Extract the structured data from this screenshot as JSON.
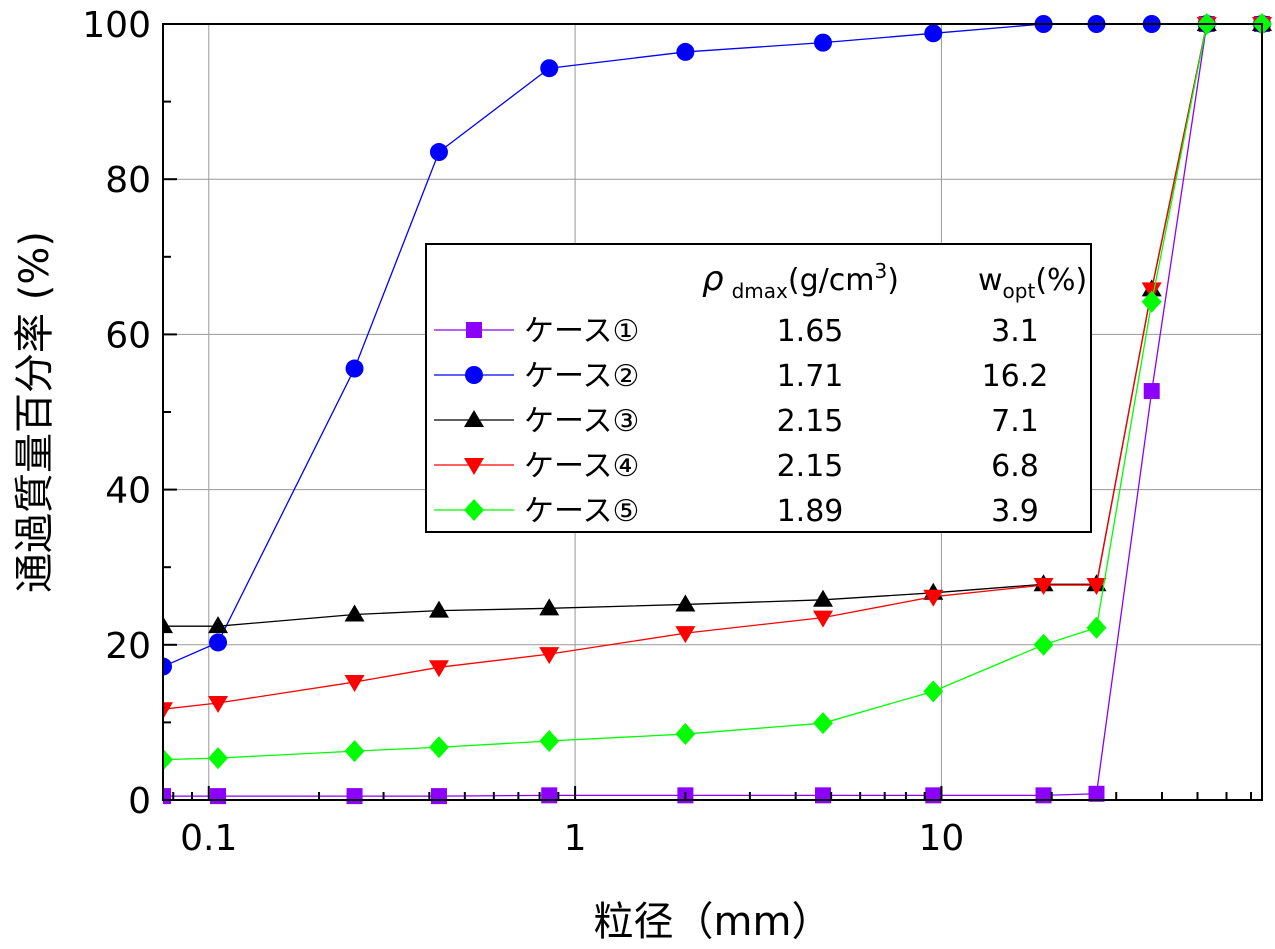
{
  "chart_data": {
    "type": "line",
    "xlabel": "粒径（mm）",
    "ylabel": "通過質量百分率 (%)",
    "x_scale": "log",
    "xlim": [
      0.075,
      75
    ],
    "ylim": [
      0,
      100
    ],
    "x_ticks": [
      0.1,
      1,
      10
    ],
    "x_tick_labels": [
      "0.1",
      "1",
      "10"
    ],
    "y_ticks": [
      0,
      20,
      40,
      60,
      80,
      100
    ],
    "y_tick_labels": [
      "0",
      "20",
      "40",
      "60",
      "80",
      "100"
    ],
    "grid": true,
    "legend_position": "center",
    "legend_headers": {
      "rho_symbol": "ρ",
      "rho_sub": "dmax",
      "rho_unit": "(g/cm",
      "rho_sup": "3",
      "rho_close": ")",
      "w_symbol": "w",
      "w_sub": "opt",
      "w_unit": "(%)"
    },
    "series": [
      {
        "name": "ケース①",
        "rho": "1.65",
        "w": "3.1",
        "color": "#8B00FF",
        "marker": "square",
        "x": [
          0.075,
          0.106,
          0.25,
          0.425,
          0.85,
          2,
          4.75,
          9.5,
          19,
          26.5,
          37.5,
          53,
          75
        ],
        "values": [
          0.5,
          0.5,
          0.5,
          0.5,
          0.6,
          0.6,
          0.6,
          0.6,
          0.6,
          0.8,
          52.7,
          100,
          100
        ]
      },
      {
        "name": "ケース②",
        "rho": "1.71",
        "w": "16.2",
        "color": "#0000FF",
        "marker": "circle",
        "x": [
          0.075,
          0.106,
          0.25,
          0.425,
          0.85,
          2,
          4.75,
          9.5,
          19,
          26.5,
          37.5,
          53,
          75
        ],
        "values": [
          17.2,
          20.3,
          55.6,
          83.5,
          94.3,
          96.4,
          97.6,
          98.8,
          100,
          100,
          100,
          100,
          100
        ]
      },
      {
        "name": "ケース③",
        "rho": "2.15",
        "w": "7.1",
        "color": "#000000",
        "marker": "triangle-up",
        "x": [
          0.075,
          0.106,
          0.25,
          0.425,
          0.85,
          2,
          4.75,
          9.5,
          19,
          26.5,
          37.5,
          53,
          75
        ],
        "values": [
          22.4,
          22.4,
          23.9,
          24.4,
          24.7,
          25.2,
          25.8,
          26.7,
          27.8,
          27.8,
          65.8,
          100,
          100
        ]
      },
      {
        "name": "ケース④",
        "rho": "2.15",
        "w": "6.8",
        "color": "#FF0000",
        "marker": "triangle-down",
        "x": [
          0.075,
          0.106,
          0.25,
          0.425,
          0.85,
          2,
          4.75,
          9.5,
          19,
          26.5,
          37.5,
          53,
          75
        ],
        "values": [
          11.7,
          12.5,
          15.2,
          17.1,
          18.8,
          21.5,
          23.5,
          26.2,
          27.7,
          27.7,
          65.8,
          100,
          100
        ]
      },
      {
        "name": "ケース⑤",
        "rho": "1.89",
        "w": "3.9",
        "color": "#00FF00",
        "marker": "diamond",
        "x": [
          0.075,
          0.106,
          0.25,
          0.425,
          0.85,
          2,
          4.75,
          9.5,
          19,
          26.5,
          37.5,
          53,
          75
        ],
        "values": [
          5.2,
          5.4,
          6.3,
          6.8,
          7.6,
          8.5,
          9.9,
          14.0,
          20.0,
          22.2,
          64.2,
          100,
          100
        ]
      }
    ]
  }
}
